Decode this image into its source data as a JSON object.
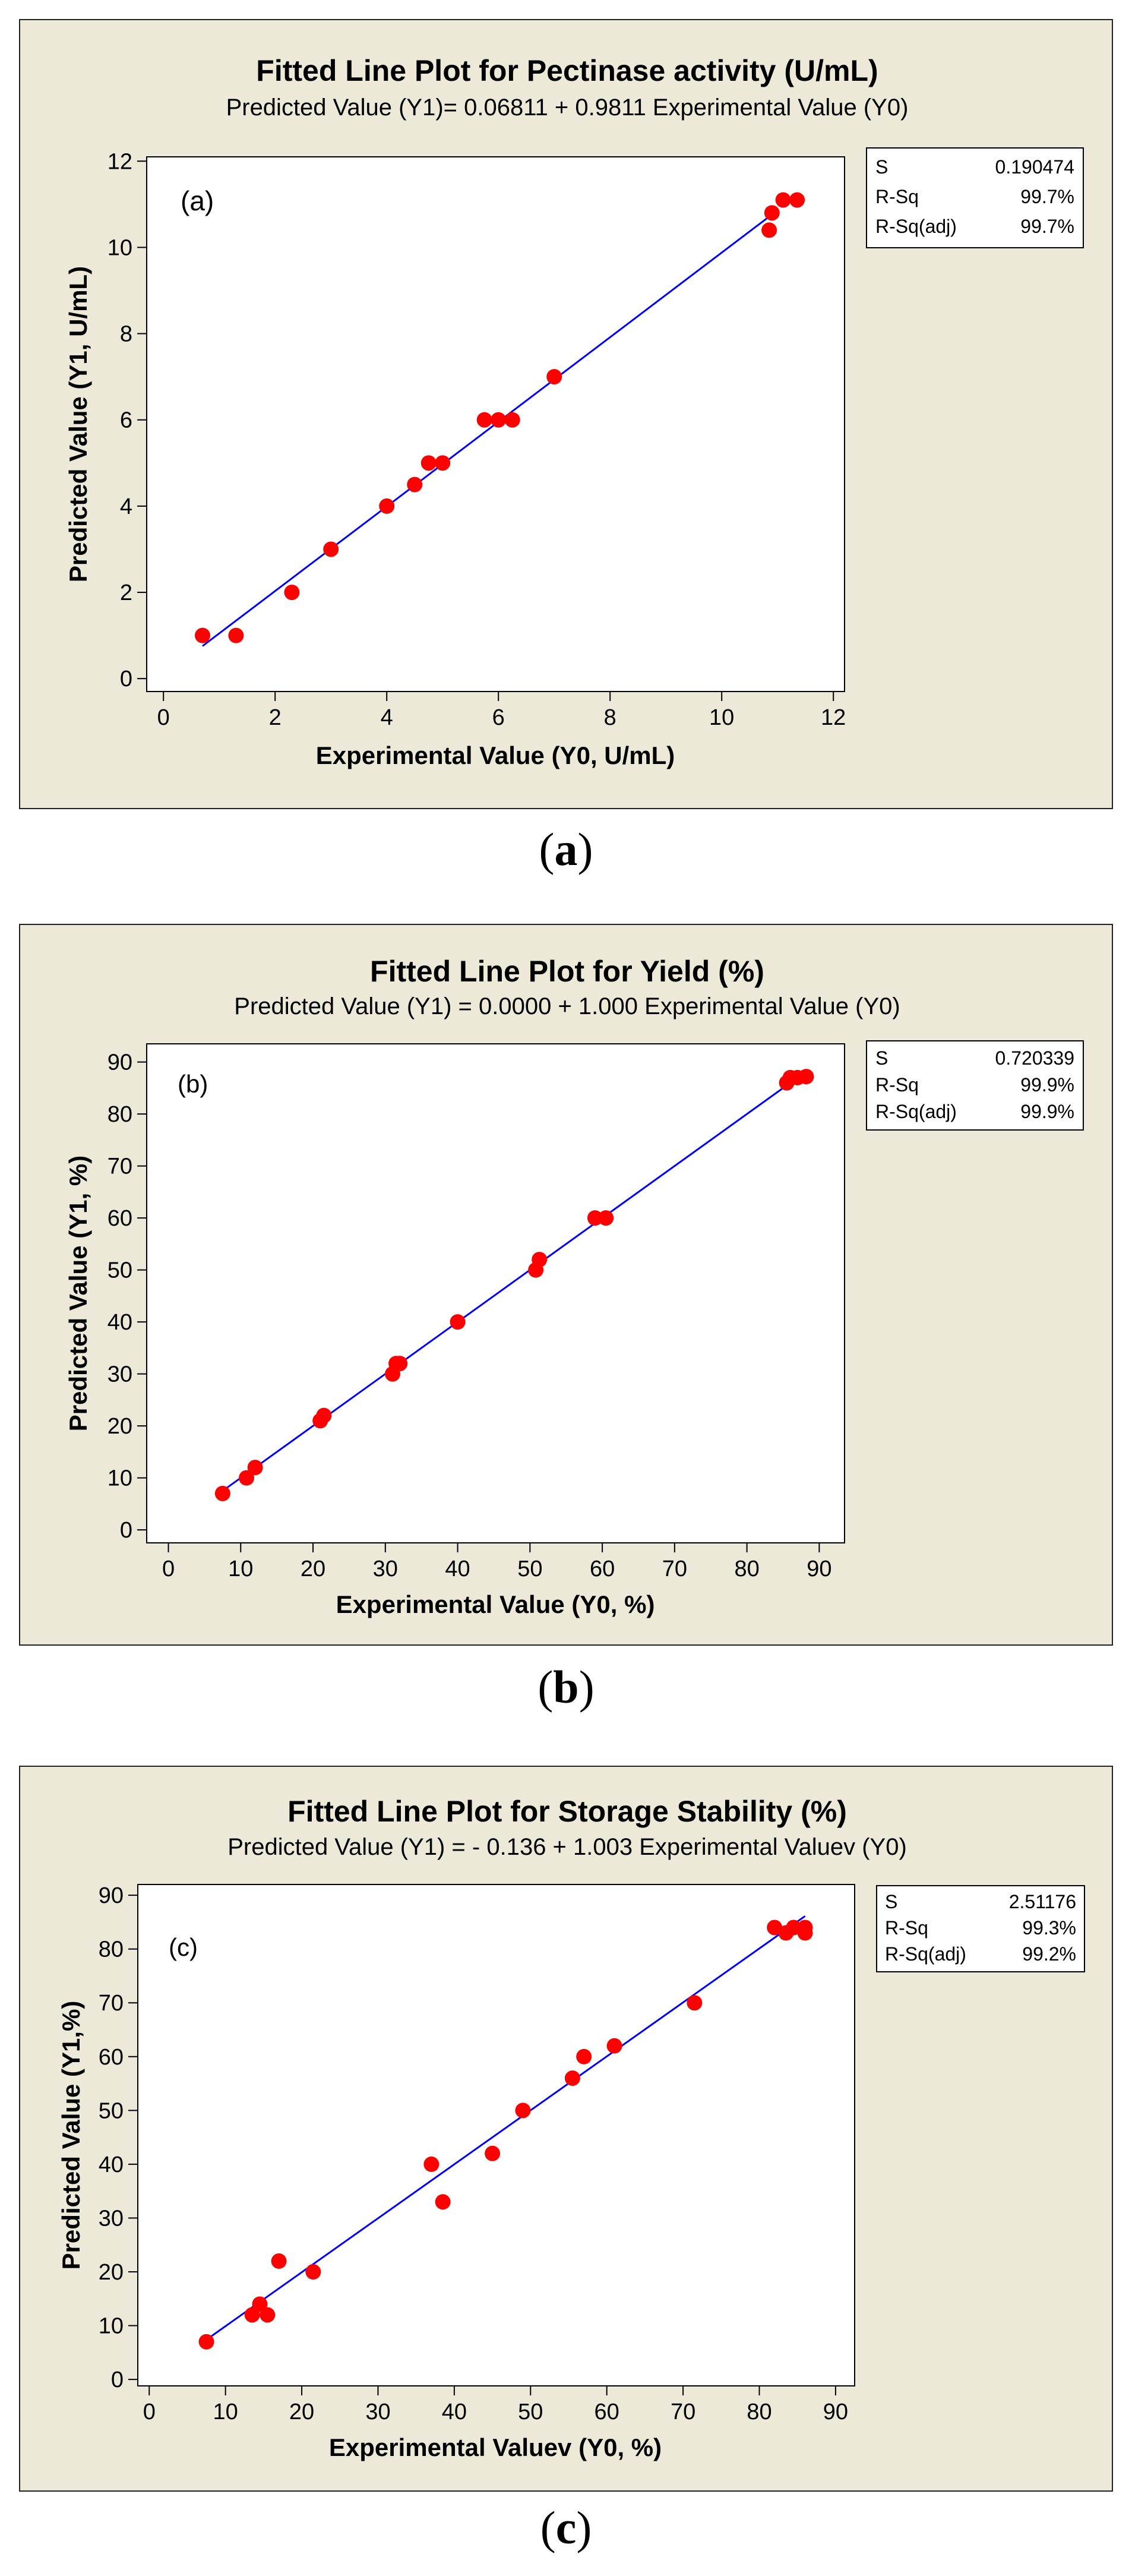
{
  "colors": {
    "panel_bg": "#ece9d8",
    "plot_bg": "#ffffff",
    "fit_line": "#0000ff",
    "points": "#ff0000",
    "text": "#000000"
  },
  "chart_data": [
    {
      "type": "scatter",
      "title": "Fitted Line Plot for Pectinase activity (U/mL)",
      "subtitle": "Predicted Value (Y1)=  0.06811 + 0.9811 Experimental Value (Y0)",
      "panel_tag": "(a)",
      "xlabel": "Experimental Value (Y0, U/mL)",
      "ylabel": "Predicted Value (Y1, U/mL)",
      "xlim": [
        -0.3,
        12.2
      ],
      "ylim": [
        -0.3,
        12.1
      ],
      "xticks": [
        0,
        2,
        4,
        6,
        8,
        10,
        12
      ],
      "yticks": [
        0,
        2,
        4,
        6,
        8,
        10,
        12
      ],
      "fit": {
        "intercept": 0.06811,
        "slope": 0.9811,
        "x_range": [
          0.7,
          11.0
        ]
      },
      "points": [
        [
          0.7,
          1
        ],
        [
          1.3,
          1
        ],
        [
          2.3,
          2
        ],
        [
          3.0,
          3
        ],
        [
          4.0,
          4
        ],
        [
          4.5,
          4.5
        ],
        [
          4.75,
          5
        ],
        [
          5.0,
          5
        ],
        [
          5.75,
          6
        ],
        [
          6.0,
          6
        ],
        [
          6.25,
          6
        ],
        [
          7.0,
          7
        ],
        [
          10.85,
          10.4
        ],
        [
          10.9,
          10.8
        ],
        [
          11.1,
          11.1
        ],
        [
          11.35,
          11.1
        ]
      ],
      "stats": {
        "rows": [
          {
            "label": "S",
            "value": "0.190474"
          },
          {
            "label": "R-Sq",
            "value": "99.7%"
          },
          {
            "label": "R-Sq(adj)",
            "value": "99.7%"
          }
        ]
      },
      "caption": "a"
    },
    {
      "type": "scatter",
      "title": "Fitted Line Plot for Yield (%)",
      "subtitle": "Predicted Value (Y1) =  0.0000 + 1.000 Experimental Value  (Y0)",
      "panel_tag": "(b)",
      "xlabel": "Experimental Value  (Y0, %)",
      "ylabel": "Predicted Value (Y1, %)",
      "xlim": [
        -3,
        93.5
      ],
      "ylim": [
        -2.5,
        93.5
      ],
      "xticks": [
        0,
        10,
        20,
        30,
        40,
        50,
        60,
        70,
        80,
        90
      ],
      "yticks": [
        0,
        10,
        20,
        30,
        40,
        50,
        60,
        70,
        80,
        90
      ],
      "fit": {
        "intercept": 0.0,
        "slope": 1.0,
        "x_range": [
          7.5,
          87.5
        ]
      },
      "points": [
        [
          7.5,
          7
        ],
        [
          10.8,
          10
        ],
        [
          12,
          12
        ],
        [
          21,
          21
        ],
        [
          21.5,
          22
        ],
        [
          31,
          30
        ],
        [
          31.5,
          32
        ],
        [
          32,
          32
        ],
        [
          40,
          40
        ],
        [
          50.8,
          50
        ],
        [
          51.3,
          52
        ],
        [
          59,
          60
        ],
        [
          60.5,
          60
        ],
        [
          85.5,
          86
        ],
        [
          86,
          87
        ],
        [
          87,
          87
        ],
        [
          88.2,
          87.2
        ]
      ],
      "stats": {
        "rows": [
          {
            "label": "S",
            "value": "0.720339"
          },
          {
            "label": "R-Sq",
            "value": "99.9%"
          },
          {
            "label": "R-Sq(adj)",
            "value": "99.9%"
          }
        ]
      },
      "caption": "b"
    },
    {
      "type": "scatter",
      "title": "Fitted Line Plot for Storage Stability (%)",
      "subtitle": "Predicted Value (Y1) =  - 0.136 + 1.003 Experimental Valuev (Y0)",
      "panel_tag": "(c)",
      "xlabel": "Experimental Valuev (Y0, %)",
      "ylabel": "Predicted Value (Y1,%)",
      "xlim": [
        -1.5,
        92.5
      ],
      "ylim": [
        -1.2,
        92
      ],
      "xticks": [
        0,
        10,
        20,
        30,
        40,
        50,
        60,
        70,
        80,
        90
      ],
      "yticks": [
        0,
        10,
        20,
        30,
        40,
        50,
        60,
        70,
        80,
        90
      ],
      "fit": {
        "intercept": -0.136,
        "slope": 1.003,
        "x_range": [
          7.5,
          86
        ]
      },
      "points": [
        [
          7.5,
          7
        ],
        [
          13.5,
          12
        ],
        [
          14.5,
          14
        ],
        [
          15.5,
          12
        ],
        [
          17,
          22
        ],
        [
          21.5,
          20
        ],
        [
          37,
          40
        ],
        [
          38.5,
          33
        ],
        [
          45,
          42
        ],
        [
          49,
          50
        ],
        [
          55.5,
          56
        ],
        [
          57,
          60
        ],
        [
          61,
          62
        ],
        [
          71.5,
          70
        ],
        [
          82,
          84
        ],
        [
          83.5,
          83
        ],
        [
          84.5,
          84
        ],
        [
          86,
          83
        ],
        [
          86,
          84
        ]
      ],
      "stats": {
        "rows": [
          {
            "label": "S",
            "value": "2.51176"
          },
          {
            "label": "R-Sq",
            "value": "99.3%"
          },
          {
            "label": "R-Sq(adj)",
            "value": "99.2%"
          }
        ]
      },
      "caption": "c"
    }
  ]
}
